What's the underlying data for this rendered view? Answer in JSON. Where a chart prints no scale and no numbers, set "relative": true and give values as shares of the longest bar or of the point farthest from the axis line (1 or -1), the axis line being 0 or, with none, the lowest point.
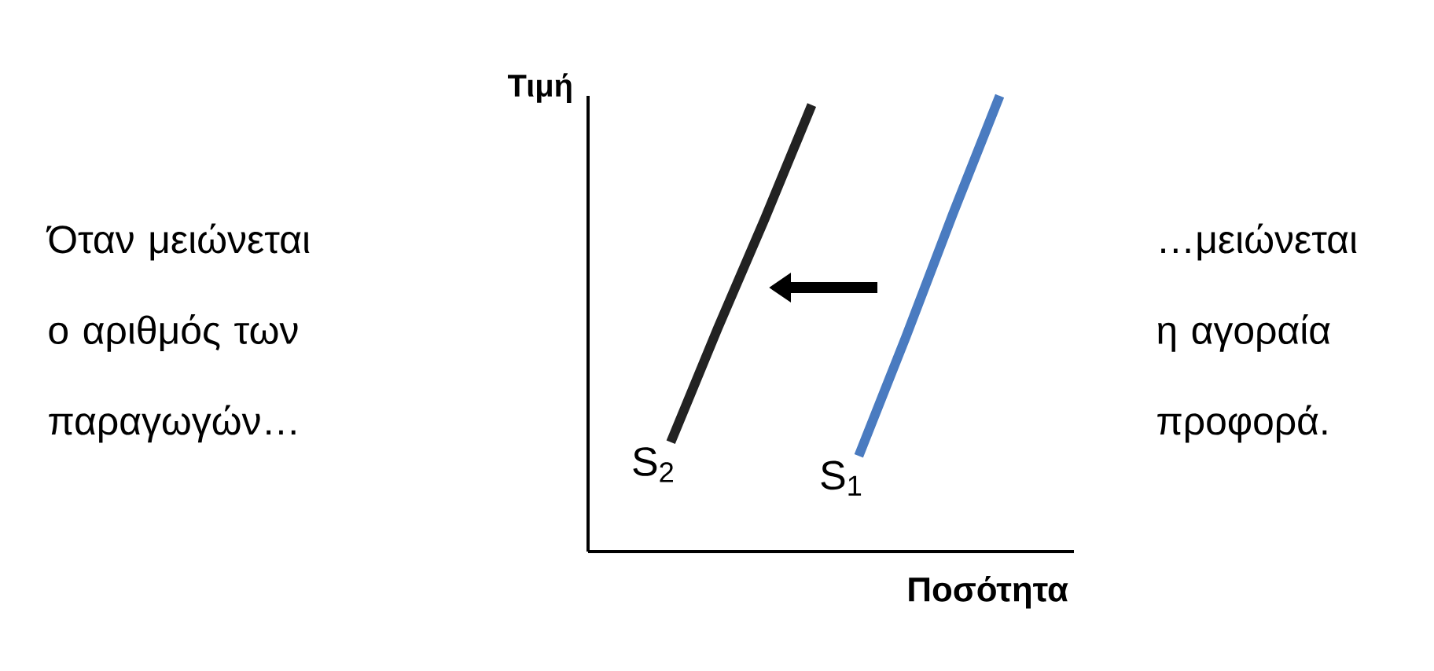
{
  "chart_data": {
    "type": "line",
    "relative": true,
    "xlabel": "Ποσότητα",
    "ylabel": "Τιμή",
    "categories": [
      null,
      null,
      null,
      null,
      null,
      null,
      null,
      null
    ],
    "series": [
      {
        "name": "S$_{1}$",
        "color": "#4a7bc0",
        "values": [
          null,
          null,
          null,
          null,
          0.21,
          0.47,
          0.74,
          1
        ]
      },
      {
        "name": "S$_{2}$",
        "color": "#222222",
        "values": [
          0.24,
          0.49,
          0.73,
          0.98,
          null,
          null,
          null,
          null
        ]
      }
    ],
    "annotations": [
      "Όταν μειώνεται ο αριθμός των παραγωγών…",
      "…μειώνεται η αγοραία προφορά."
    ]
  }
}
